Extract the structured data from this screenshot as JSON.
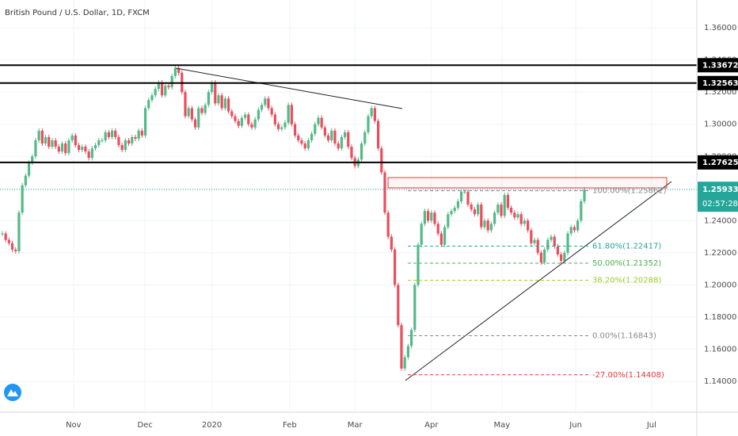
{
  "chart_data": {
    "type": "candlestick",
    "title": "British Pound / U.S. Dollar, 1D, FXCM",
    "up_color": "#53b987",
    "down_color": "#eb4d5c",
    "grid": true,
    "xlim": [
      -0.7,
      208.8
    ],
    "xticks": [
      {
        "value": 21.4,
        "label": "Nov"
      },
      {
        "value": 42.9,
        "label": "Dec"
      },
      {
        "value": 63,
        "label": "2020"
      },
      {
        "value": 86.4,
        "label": "Feb"
      },
      {
        "value": 106,
        "label": "Mar"
      },
      {
        "value": 129,
        "label": "Apr"
      },
      {
        "value": 150.2,
        "label": "May"
      },
      {
        "value": 172.4,
        "label": "Jun"
      },
      {
        "value": 195.2,
        "label": "Jul"
      }
    ],
    "ylim": [
      1.1208,
      1.3773
    ],
    "yticks": [
      {
        "value": 1.14,
        "label": "1.14000"
      },
      {
        "value": 1.16,
        "label": "1.16000"
      },
      {
        "value": 1.18,
        "label": "1.18000"
      },
      {
        "value": 1.2,
        "label": "1.20000"
      },
      {
        "value": 1.22,
        "label": "1.22000"
      },
      {
        "value": 1.24,
        "label": "1.24000"
      },
      {
        "value": 1.26,
        "label": "1.26000"
      },
      {
        "value": 1.28,
        "label": "1.28000"
      },
      {
        "value": 1.3,
        "label": "1.30000"
      },
      {
        "value": 1.32,
        "label": "1.32000"
      },
      {
        "value": 1.34,
        "label": "1.34000"
      },
      {
        "value": 1.36,
        "label": "1.36000"
      }
    ],
    "values": [
      1.232,
      1.228,
      1.226,
      1.222,
      1.221,
      1.245,
      1.262,
      1.268,
      1.276,
      1.28,
      1.29,
      1.296,
      1.288,
      1.292,
      1.286,
      1.29,
      1.286,
      1.283,
      1.288,
      1.282,
      1.29,
      1.293,
      1.287,
      1.284,
      1.286,
      1.283,
      1.279,
      1.285,
      1.287,
      1.29,
      1.29,
      1.295,
      1.292,
      1.296,
      1.292,
      1.287,
      1.284,
      1.29,
      1.288,
      1.292,
      1.291,
      1.296,
      1.293,
      1.31,
      1.315,
      1.318,
      1.322,
      1.326,
      1.318,
      1.324,
      1.323,
      1.33,
      1.335,
      1.332,
      1.32,
      1.305,
      1.31,
      1.303,
      1.298,
      1.31,
      1.307,
      1.312,
      1.32,
      1.326,
      1.313,
      1.318,
      1.31,
      1.316,
      1.308,
      1.305,
      1.302,
      1.299,
      1.304,
      1.306,
      1.3,
      1.298,
      1.303,
      1.309,
      1.312,
      1.316,
      1.31,
      1.306,
      1.3,
      1.297,
      1.298,
      1.301,
      1.312,
      1.3,
      1.293,
      1.29,
      1.288,
      1.285,
      1.29,
      1.294,
      1.3,
      1.304,
      1.298,
      1.293,
      1.29,
      1.296,
      1.288,
      1.285,
      1.292,
      1.295,
      1.286,
      1.279,
      1.274,
      1.278,
      1.288,
      1.295,
      1.305,
      1.31,
      1.302,
      1.285,
      1.27,
      1.245,
      1.23,
      1.222,
      1.2,
      1.175,
      1.148,
      1.155,
      1.162,
      1.172,
      1.2,
      1.225,
      1.238,
      1.246,
      1.24,
      1.245,
      1.238,
      1.232,
      1.225,
      1.236,
      1.244,
      1.246,
      1.248,
      1.252,
      1.258,
      1.258,
      1.25,
      1.247,
      1.244,
      1.25,
      1.236,
      1.24,
      1.234,
      1.238,
      1.245,
      1.25,
      1.243,
      1.256,
      1.248,
      1.245,
      1.242,
      1.244,
      1.238,
      1.24,
      1.234,
      1.226,
      1.228,
      1.22,
      1.214,
      1.222,
      1.228,
      1.23,
      1.224,
      1.219,
      1.215,
      1.22,
      1.232,
      1.236,
      1.234,
      1.24,
      1.252,
      1.2593
    ],
    "levels": [
      1.33672,
      1.32563,
      1.27625
    ],
    "last_price": 1.25933,
    "last_price_color": "#26a69a",
    "countdown": "02:57:28",
    "fib_levels": [
      {
        "label": "100.00%(1.25862)",
        "value": 1.25862,
        "color": "#8a8a8a"
      },
      {
        "label": "61.80%(1.22417)",
        "value": 1.22417,
        "color": "#26a69a"
      },
      {
        "label": "50.00%(1.21352)",
        "value": 1.21352,
        "color": "#4caf50"
      },
      {
        "label": "38.20%(1.20288)",
        "value": 1.20288,
        "color": "#9ccc27"
      },
      {
        "label": "0.00%(1.16843)",
        "value": 1.16843,
        "color": "#8a8a8a"
      },
      {
        "label": "-27.00%(1.14408)",
        "value": 1.14408,
        "color": "#e53935"
      }
    ]
  }
}
